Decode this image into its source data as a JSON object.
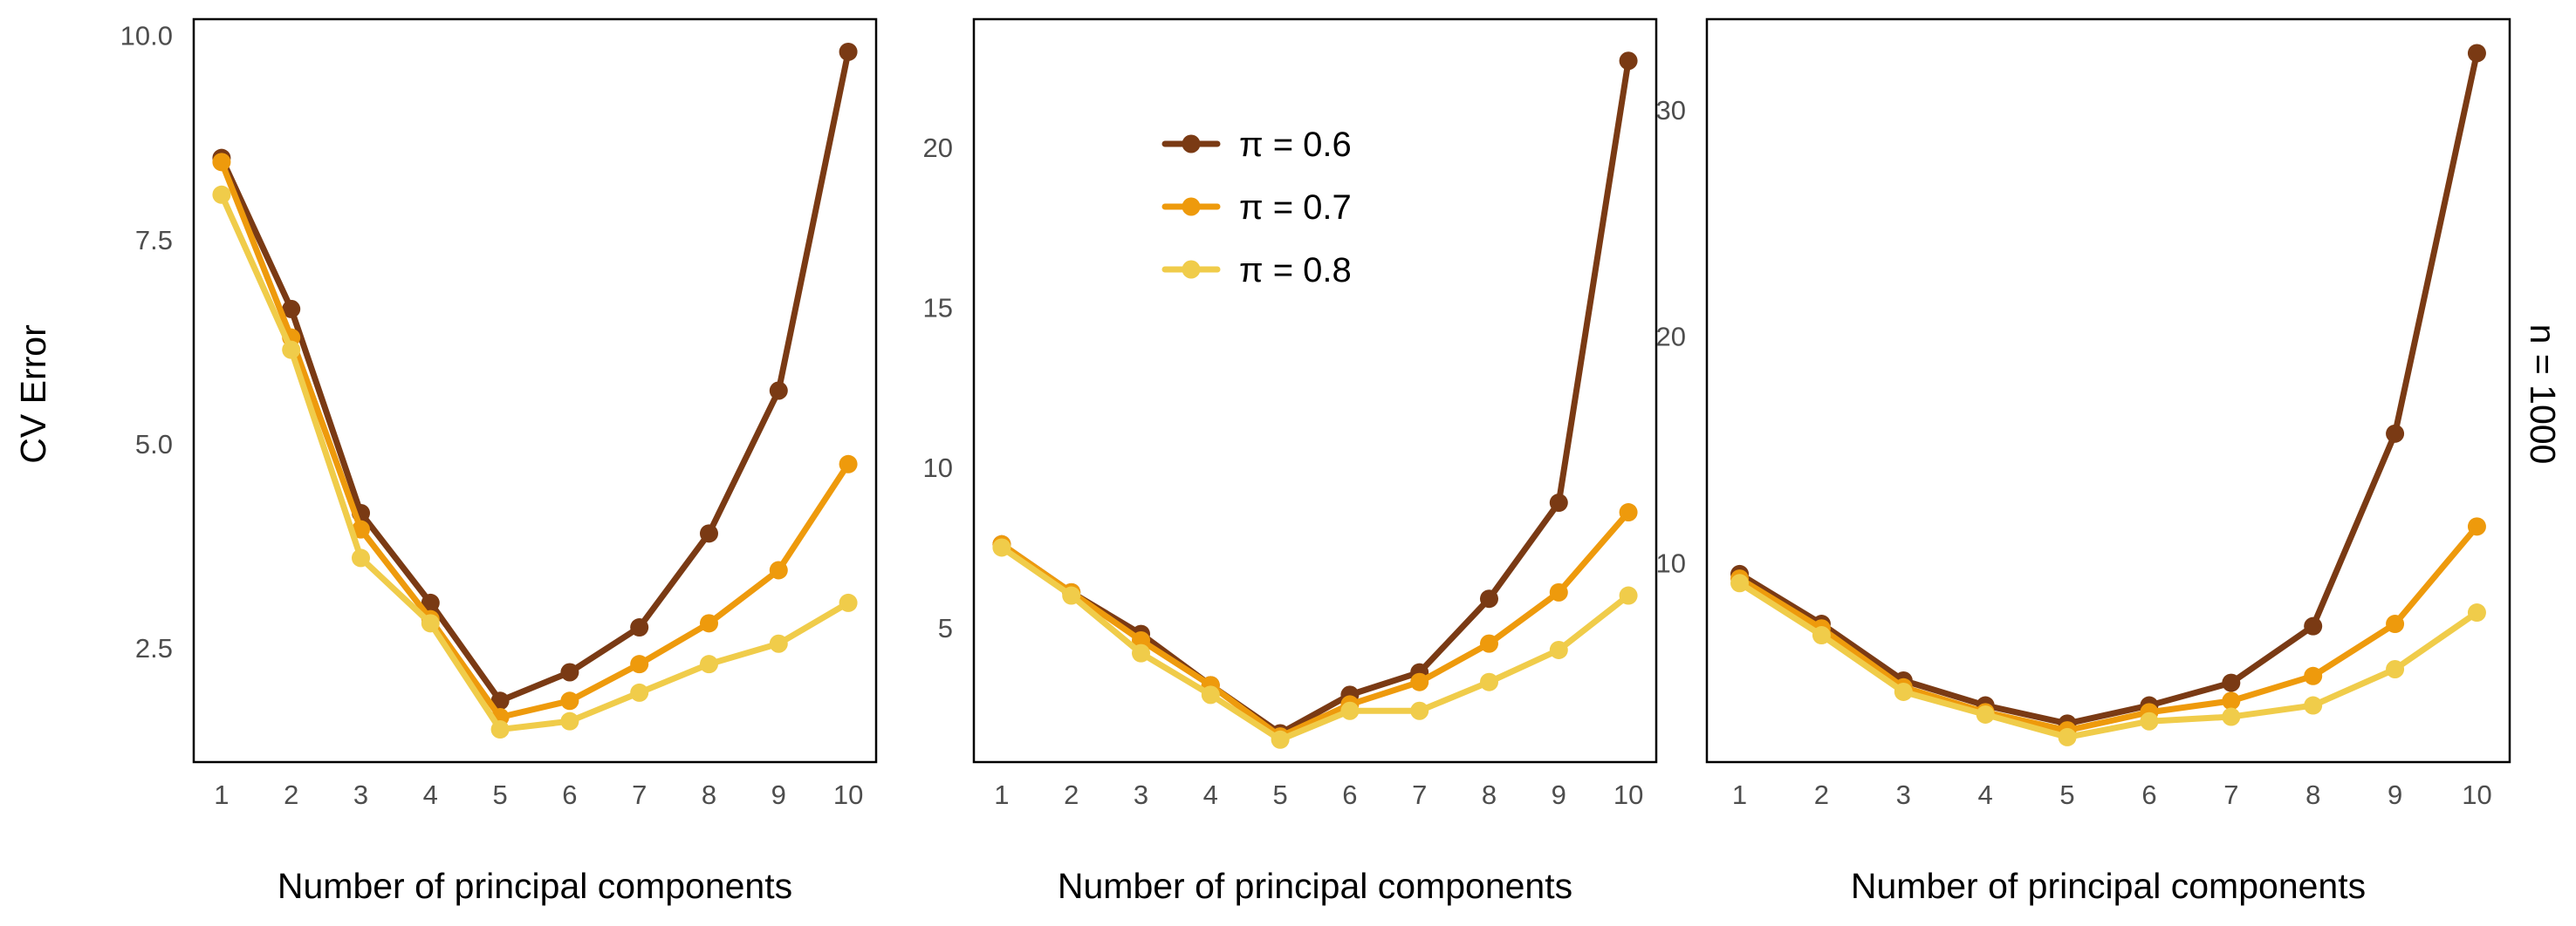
{
  "colors": {
    "pi_0.6": "#7a3a14",
    "pi_0.7": "#ee9a0c",
    "pi_0.8": "#f0cc4a",
    "frame": "#000000",
    "tick_text": "#4d4d4d"
  },
  "figure": {
    "ylabel": "CV Error",
    "strip_label": "n = 1000",
    "legend_location": "panel 2, upper-left",
    "grid": false
  },
  "chart_data": [
    {
      "type": "line",
      "xlabel": "Number of principal components",
      "ylabel": "CV Error",
      "x": [
        1,
        2,
        3,
        4,
        5,
        6,
        7,
        8,
        9,
        10
      ],
      "xlim": [
        0.6,
        10.4
      ],
      "ylim": [
        1.1,
        10.2
      ],
      "yticks": [
        2.5,
        5.0,
        7.5,
        10.0
      ],
      "ytick_labels": [
        "2.5",
        "5.0",
        "7.5",
        "10.0"
      ],
      "series": [
        {
          "name": "π = 0.6",
          "values": [
            8.5,
            6.65,
            4.15,
            3.05,
            1.85,
            2.2,
            2.75,
            3.9,
            5.65,
            9.8
          ]
        },
        {
          "name": "π = 0.7",
          "values": [
            8.45,
            6.3,
            3.95,
            2.85,
            1.65,
            1.85,
            2.3,
            2.8,
            3.45,
            4.75
          ]
        },
        {
          "name": "π = 0.8",
          "values": [
            8.05,
            6.15,
            3.6,
            2.8,
            1.5,
            1.6,
            1.95,
            2.3,
            2.55,
            3.05
          ]
        }
      ]
    },
    {
      "type": "line",
      "xlabel": "Number of principal components",
      "ylabel": "",
      "x": [
        1,
        2,
        3,
        4,
        5,
        6,
        7,
        8,
        9,
        10
      ],
      "xlim": [
        0.6,
        10.4
      ],
      "ylim": [
        0.8,
        24.0
      ],
      "yticks": [
        5,
        10,
        15,
        20
      ],
      "ytick_labels": [
        "5",
        "10",
        "15",
        "20"
      ],
      "series": [
        {
          "name": "π = 0.6",
          "values": [
            7.6,
            6.1,
            4.8,
            3.2,
            1.7,
            2.9,
            3.6,
            5.9,
            8.9,
            22.7
          ]
        },
        {
          "name": "π = 0.7",
          "values": [
            7.6,
            6.1,
            4.6,
            3.2,
            1.6,
            2.6,
            3.3,
            4.5,
            6.1,
            8.6
          ]
        },
        {
          "name": "π = 0.8",
          "values": [
            7.5,
            6.0,
            4.2,
            2.9,
            1.5,
            2.4,
            2.4,
            3.3,
            4.3,
            6.0
          ]
        }
      ]
    },
    {
      "type": "line",
      "xlabel": "Number of principal components",
      "ylabel": "",
      "x": [
        1,
        2,
        3,
        4,
        5,
        6,
        7,
        8,
        9,
        10
      ],
      "xlim": [
        0.6,
        10.4
      ],
      "ylim": [
        1.2,
        34.0
      ],
      "yticks": [
        10,
        20,
        30
      ],
      "ytick_labels": [
        "10",
        "20",
        "30"
      ],
      "series": [
        {
          "name": "π = 0.6",
          "values": [
            9.5,
            7.3,
            4.8,
            3.7,
            2.9,
            3.7,
            4.7,
            7.2,
            15.7,
            32.5
          ]
        },
        {
          "name": "π = 0.7",
          "values": [
            9.3,
            7.1,
            4.5,
            3.4,
            2.6,
            3.4,
            3.9,
            5.0,
            7.3,
            11.6
          ]
        },
        {
          "name": "π = 0.8",
          "values": [
            9.1,
            6.8,
            4.3,
            3.3,
            2.3,
            3.0,
            3.2,
            3.7,
            5.3,
            7.8
          ]
        }
      ]
    }
  ]
}
